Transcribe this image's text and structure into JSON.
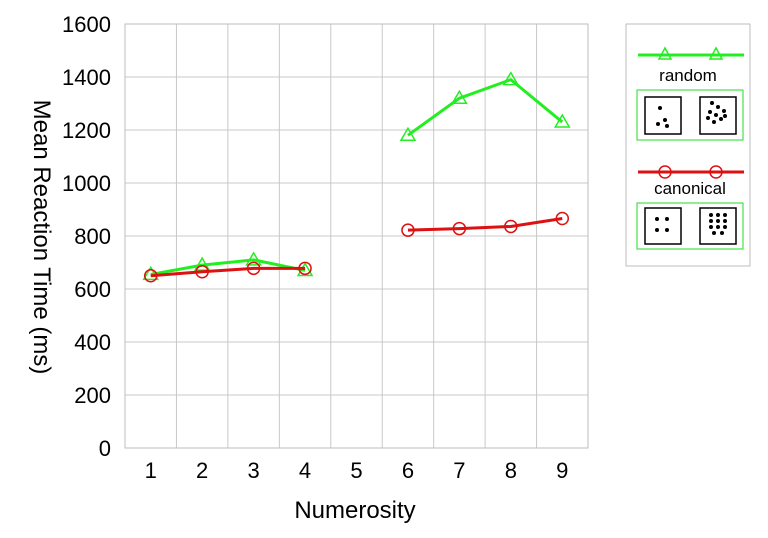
{
  "chart_data": {
    "type": "line",
    "xlabel": "Numerosity",
    "ylabel": "Mean Reaction Time (ms)",
    "categories": [
      "1",
      "2",
      "3",
      "4",
      "5",
      "6",
      "7",
      "8",
      "9"
    ],
    "ylim": [
      0,
      1600
    ],
    "yticks": [
      0,
      200,
      400,
      600,
      800,
      1000,
      1200,
      1400,
      1600
    ],
    "grid": true,
    "legend_position": "right",
    "series": [
      {
        "name": "random",
        "color": "#22ee22",
        "marker": "triangle",
        "segments": [
          {
            "x": [
              "1",
              "2",
              "3",
              "4"
            ],
            "values": [
              655,
              690,
              710,
              670
            ]
          },
          {
            "x": [
              "6",
              "7",
              "8",
              "9"
            ],
            "values": [
              1180,
              1320,
              1390,
              1230
            ]
          }
        ]
      },
      {
        "name": "canonical",
        "color": "#dd1111",
        "marker": "circle",
        "segments": [
          {
            "x": [
              "1",
              "2",
              "3",
              "4"
            ],
            "values": [
              650,
              665,
              678,
              678
            ]
          },
          {
            "x": [
              "6",
              "7",
              "8",
              "9"
            ],
            "values": [
              822,
              828,
              836,
              866
            ]
          }
        ]
      }
    ],
    "legend_images": [
      {
        "series": "random",
        "icons": [
          "random-small-dots-icon",
          "random-large-dots-icon"
        ]
      },
      {
        "series": "canonical",
        "icons": [
          "canonical-small-dots-icon",
          "canonical-large-dots-icon"
        ]
      }
    ]
  }
}
